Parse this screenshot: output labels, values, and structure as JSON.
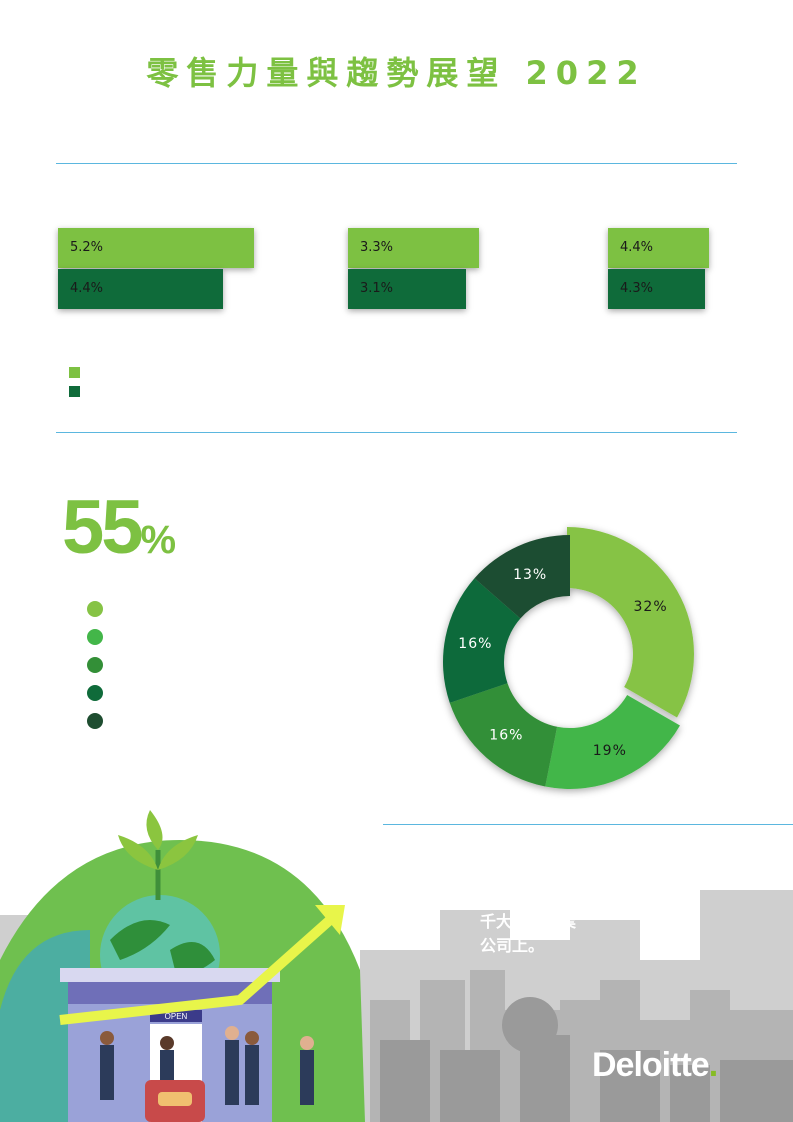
{
  "header": {
    "title": "零售力量與趨勢展望 2022"
  },
  "growth": {
    "groups": [
      {
        "light_value": "5.2%",
        "dark_value": "4.4%"
      },
      {
        "light_value": "3.3%",
        "dark_value": "3.1%"
      },
      {
        "light_value": "4.4%",
        "dark_value": "4.3%"
      }
    ]
  },
  "share": {
    "headline": "55",
    "headline_unit": "%"
  },
  "chart_data": {
    "type": "pie",
    "values": [
      32,
      19,
      16,
      16,
      13
    ],
    "labels": [
      "32%",
      "19%",
      "16%",
      "16%",
      "13%"
    ],
    "colors": [
      "#86c345",
      "#43b649",
      "#338f37",
      "#0f6b3a",
      "#1e4d30"
    ]
  },
  "footer": {
    "text_line1": "千大零售企業",
    "text_line2": "公司上。",
    "logo": "Deloitte",
    "logo_period": "."
  },
  "colors": {
    "accent_green": "#7dc142",
    "dark_green": "#0f6b3a",
    "rule_blue": "#5bb7df"
  }
}
